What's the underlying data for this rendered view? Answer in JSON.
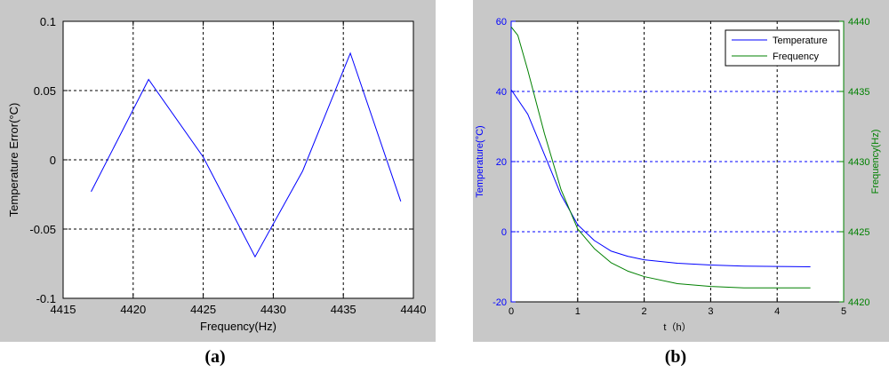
{
  "captions": {
    "left": "(a)",
    "right": "(b)"
  },
  "chart_data": [
    {
      "type": "line",
      "xlabel": "Frequency(Hz)",
      "ylabel": "Temperature Error(°C)",
      "xlim": [
        4415,
        4440
      ],
      "ylim": [
        -0.1,
        0.1
      ],
      "xticks": [
        4415,
        4420,
        4425,
        4430,
        4435,
        4440
      ],
      "yticks": [
        -0.1,
        -0.05,
        0,
        0.05,
        0.1
      ],
      "grid": true,
      "colors": {
        "line": "#0000ff"
      },
      "series": [
        {
          "x": [
            4417.0,
            4421.1,
            4425.0,
            4428.7,
            4432.1,
            4435.5,
            4439.1
          ],
          "y": [
            -0.023,
            0.058,
            0.002,
            -0.07,
            -0.008,
            0.077,
            -0.03
          ]
        }
      ]
    },
    {
      "type": "line",
      "xlabel": "t（h）",
      "ylabel": "Temperature(°C)",
      "ylabel_right": "Frequency(Hz)",
      "xlim": [
        0,
        5
      ],
      "ylim": [
        -20,
        60
      ],
      "ylim_right": [
        4420,
        4440
      ],
      "xticks": [
        0,
        1,
        2,
        3,
        4,
        5
      ],
      "yticks": [
        -20,
        0,
        20,
        40,
        60
      ],
      "yticks_right": [
        4420,
        4425,
        4430,
        4435,
        4440
      ],
      "grid": true,
      "legend_position": "top-right",
      "colors": {
        "temperature": "#0000ff",
        "frequency": "#008000",
        "left_axis": "#0000ff",
        "right_axis": "#008000"
      },
      "series": [
        {
          "name": "Temperature",
          "axis": "left",
          "x": [
            0,
            0.25,
            0.5,
            0.75,
            1.0,
            1.25,
            1.5,
            1.75,
            2.0,
            2.5,
            3.0,
            3.5,
            4.0,
            4.5
          ],
          "y": [
            40.5,
            33.5,
            22.0,
            10.5,
            2.0,
            -2.5,
            -5.5,
            -7.0,
            -8.0,
            -9.0,
            -9.5,
            -9.8,
            -9.9,
            -10.0
          ]
        },
        {
          "name": "Frequency",
          "axis": "right",
          "x": [
            0,
            0.1,
            0.25,
            0.5,
            0.75,
            1.0,
            1.25,
            1.5,
            1.75,
            2.0,
            2.5,
            3.0,
            3.5,
            4.0,
            4.5
          ],
          "y": [
            4439.6,
            4439.0,
            4436.5,
            4432.0,
            4428.0,
            4425.2,
            4423.8,
            4422.8,
            4422.2,
            4421.8,
            4421.3,
            4421.1,
            4421.0,
            4421.0,
            4421.0
          ]
        }
      ]
    }
  ]
}
